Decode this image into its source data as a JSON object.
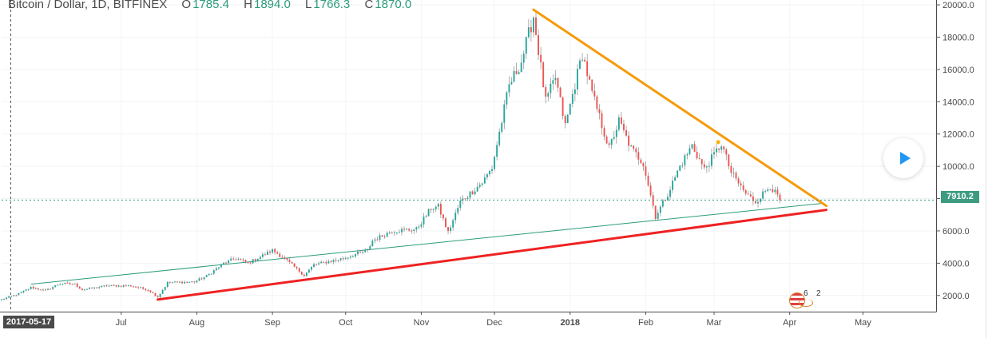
{
  "chart_data": {
    "type": "candlestick",
    "title": "Bitcoin / Dollar, 1D, BITFINEX",
    "symbol": "Bitcoin / Dollar",
    "interval": "1D",
    "exchange": "BITFINEX",
    "ohlc": {
      "o_label": "O",
      "o": "1785.4",
      "h_label": "H",
      "h": "1894.0",
      "l_label": "L",
      "l": "1766.3",
      "c_label": "C",
      "c": "1870.0"
    },
    "y_ticks": [
      "20000.0",
      "18000.0",
      "16000.0",
      "14000.0",
      "12000.0",
      "10000.0",
      "8000.0",
      "6000.0",
      "4000.0",
      "2000.0"
    ],
    "y_tick_values": [
      20000,
      18000,
      16000,
      14000,
      12000,
      10000,
      8000,
      6000,
      4000,
      2000
    ],
    "ylim": [
      1000,
      20300
    ],
    "x_ticks": [
      {
        "label": "Jul",
        "date": "2017-07-01"
      },
      {
        "label": "Aug",
        "date": "2017-08-01"
      },
      {
        "label": "Sep",
        "date": "2017-09-01"
      },
      {
        "label": "Oct",
        "date": "2017-10-01"
      },
      {
        "label": "Nov",
        "date": "2017-11-01"
      },
      {
        "label": "Dec",
        "date": "2017-12-01"
      },
      {
        "label": "2018",
        "date": "2018-01-01"
      },
      {
        "label": "Feb",
        "date": "2018-02-01"
      },
      {
        "label": "Mar",
        "date": "2018-03-01"
      },
      {
        "label": "Apr",
        "date": "2018-04-01"
      },
      {
        "label": "May",
        "date": "2018-05-01"
      }
    ],
    "x_start": "2017-05-13",
    "x_end": "2018-05-31",
    "cursor_date": "2017-05-17",
    "current_price": "7910.2",
    "current_price_value": 7910.2,
    "price_anchors": [
      [
        "2017-05-13",
        1750
      ],
      [
        "2017-05-20",
        2100
      ],
      [
        "2017-05-25",
        2500
      ],
      [
        "2017-05-31",
        2300
      ],
      [
        "2017-06-06",
        2750
      ],
      [
        "2017-06-12",
        2700
      ],
      [
        "2017-06-15",
        2350
      ],
      [
        "2017-06-25",
        2600
      ],
      [
        "2017-07-05",
        2600
      ],
      [
        "2017-07-12",
        2350
      ],
      [
        "2017-07-16",
        1900
      ],
      [
        "2017-07-20",
        2800
      ],
      [
        "2017-07-31",
        2850
      ],
      [
        "2017-08-05",
        3200
      ],
      [
        "2017-08-12",
        4000
      ],
      [
        "2017-08-17",
        4300
      ],
      [
        "2017-08-22",
        4000
      ],
      [
        "2017-09-01",
        4800
      ],
      [
        "2017-09-05",
        4400
      ],
      [
        "2017-09-14",
        3250
      ],
      [
        "2017-09-18",
        3900
      ],
      [
        "2017-09-30",
        4300
      ],
      [
        "2017-10-10",
        4800
      ],
      [
        "2017-10-12",
        5400
      ],
      [
        "2017-10-20",
        6000
      ],
      [
        "2017-10-30",
        6100
      ],
      [
        "2017-11-05",
        7400
      ],
      [
        "2017-11-08",
        7500
      ],
      [
        "2017-11-12",
        5900
      ],
      [
        "2017-11-17",
        7800
      ],
      [
        "2017-11-26",
        9000
      ],
      [
        "2017-11-30",
        9900
      ],
      [
        "2017-12-07",
        15000
      ],
      [
        "2017-12-12",
        16500
      ],
      [
        "2017-12-17",
        19300
      ],
      [
        "2017-12-22",
        14000
      ],
      [
        "2017-12-26",
        15500
      ],
      [
        "2017-12-30",
        12500
      ],
      [
        "2018-01-06",
        17000
      ],
      [
        "2018-01-10",
        14500
      ],
      [
        "2018-01-17",
        11100
      ],
      [
        "2018-01-21",
        12800
      ],
      [
        "2018-01-26",
        11100
      ],
      [
        "2018-01-31",
        10200
      ],
      [
        "2018-02-05",
        6900
      ],
      [
        "2018-02-10",
        8300
      ],
      [
        "2018-02-15",
        10000
      ],
      [
        "2018-02-20",
        11300
      ],
      [
        "2018-02-25",
        9800
      ],
      [
        "2018-03-04",
        11400
      ],
      [
        "2018-03-08",
        9600
      ],
      [
        "2018-03-14",
        8300
      ],
      [
        "2018-03-18",
        7800
      ],
      [
        "2018-03-24",
        8800
      ],
      [
        "2018-03-28",
        7900
      ]
    ],
    "trendlines": [
      {
        "name": "falling-resistance",
        "color": "#f59b0c",
        "from": [
          "2017-12-17",
          19700
        ],
        "to": [
          "2018-04-16",
          7550
        ]
      },
      {
        "name": "rising-support",
        "color": "#ee2222",
        "from": [
          "2017-07-16",
          1750
        ],
        "to": [
          "2018-04-16",
          7300
        ]
      },
      {
        "name": "rising-channel",
        "color": "#2b9c7b",
        "from": [
          "2017-05-25",
          2700
        ],
        "to": [
          "2018-04-14",
          7700
        ]
      }
    ],
    "marker_value": 11500,
    "colors": {
      "up": "#26a69a",
      "down": "#ef5350",
      "wick": "#8c8c8c"
    }
  },
  "badge": {
    "count_a": "6",
    "count_b": "2"
  },
  "play_button": {
    "icon": "play-icon"
  }
}
